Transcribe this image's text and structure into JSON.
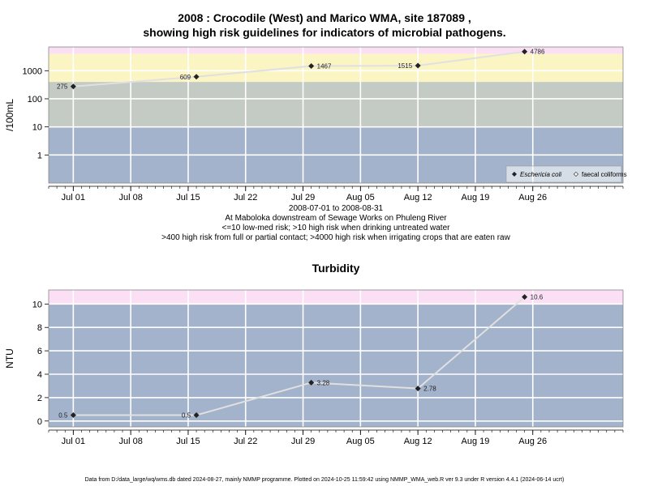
{
  "title_line1": "2008 : Crocodile (West) and Marico WMA, site 187089 ,",
  "title_line2": "showing high risk guidelines for indicators of microbial pathogens.",
  "subtext": [
    "2008-07-01 to 2008-08-31",
    "At Maboloka downstream of Sewage Works on Phuleng River",
    "<=10 low-med risk; >10 high risk when drinking untreated water",
    ">400 high risk from full or partial contact; >4000 high risk when irrigating crops that are eaten raw"
  ],
  "footer": "Data from D:/data_large/wq/wms.db dated 2024-08-27, mainly NMMP programme. Plotted on 2024-10-25 11:59:42 using NMMP_WMA_web.R ver 9.3 under R version 4.4.1 (2024-06-14 ucrt)",
  "colors": {
    "band_low": "#a3b3cb",
    "band_med": "#c4cac4",
    "band_high": "#fbf5c4",
    "band_top": "#fbe0f5",
    "line": "#e0e0e0",
    "point": "#222222",
    "grid": "#ffffff"
  },
  "chart_data": [
    {
      "type": "line",
      "title": "",
      "xlabel": "",
      "ylabel": "/100mL",
      "scale": "log10",
      "ylim": [
        0.1,
        7000
      ],
      "yticks": [
        1,
        10,
        100,
        1000
      ],
      "ytick_labels": [
        "1",
        "10",
        "100",
        "1000"
      ],
      "xlim": [
        "2008-06-28",
        "2008-09-06"
      ],
      "xticks": [
        "2008-07-01",
        "2008-07-08",
        "2008-07-15",
        "2008-07-22",
        "2008-07-29",
        "2008-08-05",
        "2008-08-12",
        "2008-08-19",
        "2008-08-26"
      ],
      "xtick_labels": [
        "Jul 01",
        "Jul 08",
        "Jul 15",
        "Jul 22",
        "Jul 29",
        "Aug 05",
        "Aug 12",
        "Aug 19",
        "Aug 26"
      ],
      "bands": [
        {
          "from": 0.1,
          "to": 10,
          "color": "#a3b3cb"
        },
        {
          "from": 10,
          "to": 400,
          "color": "#c4cac4"
        },
        {
          "from": 400,
          "to": 4000,
          "color": "#fbf5c4"
        },
        {
          "from": 4000,
          "to": 7000,
          "color": "#fbe0f5"
        }
      ],
      "series": [
        {
          "name": "Eschericia coli",
          "marker": "filled-diamond",
          "x": [
            "2008-07-01",
            "2008-07-16",
            "2008-07-30",
            "2008-08-12",
            "2008-08-25"
          ],
          "values": [
            275,
            609,
            1467,
            1515,
            4786
          ],
          "labels": [
            "275",
            "609",
            "1467",
            "1515",
            "4786"
          ],
          "label_side": [
            "left",
            "left",
            "right",
            "left",
            "right"
          ]
        }
      ],
      "legend": {
        "position": "bottom-right",
        "entries": [
          {
            "name": "Eschericia coli",
            "marker": "filled-diamond",
            "italic": true
          },
          {
            "name": "faecal coliforms",
            "marker": "open-diamond",
            "italic": false
          }
        ]
      },
      "grid": true
    },
    {
      "type": "line",
      "title": "Turbidity",
      "xlabel": "",
      "ylabel": "NTU",
      "scale": "linear",
      "ylim": [
        -0.5,
        11.2
      ],
      "yticks": [
        0,
        2,
        4,
        6,
        8,
        10
      ],
      "ytick_labels": [
        "0",
        "2",
        "4",
        "6",
        "8",
        "10"
      ],
      "xlim": [
        "2008-06-28",
        "2008-09-06"
      ],
      "xticks": [
        "2008-07-01",
        "2008-07-08",
        "2008-07-15",
        "2008-07-22",
        "2008-07-29",
        "2008-08-05",
        "2008-08-12",
        "2008-08-19",
        "2008-08-26"
      ],
      "xtick_labels": [
        "Jul 01",
        "Jul 08",
        "Jul 15",
        "Jul 22",
        "Jul 29",
        "Aug 05",
        "Aug 12",
        "Aug 19",
        "Aug 26"
      ],
      "bands": [
        {
          "from": -0.5,
          "to": 10,
          "color": "#a3b3cb"
        },
        {
          "from": 10,
          "to": 11.2,
          "color": "#fbe0f5"
        }
      ],
      "series": [
        {
          "name": "",
          "marker": "filled-diamond",
          "x": [
            "2008-07-01",
            "2008-07-16",
            "2008-07-30",
            "2008-08-12",
            "2008-08-25"
          ],
          "values": [
            0.5,
            0.5,
            3.28,
            2.78,
            10.6
          ],
          "labels": [
            "0.5",
            "0.5",
            "3.28",
            "2.78",
            "10.6"
          ],
          "label_side": [
            "left",
            "left",
            "right",
            "right",
            "right"
          ]
        }
      ],
      "grid": true
    }
  ]
}
